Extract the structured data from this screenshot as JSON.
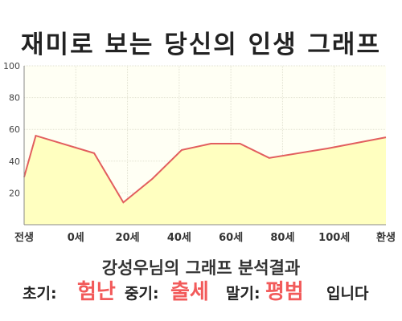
{
  "title": "재미로 보는 당신의 인생 그래프",
  "chart_data": {
    "type": "area",
    "x_tick_labels": [
      "전생",
      "0세",
      "20세",
      "40세",
      "60세",
      "80세",
      "100세",
      "환생"
    ],
    "y_ticks": [
      20,
      40,
      60,
      80,
      100
    ],
    "ylim": [
      0,
      100
    ],
    "grid": true,
    "x": [
      -1.2,
      0,
      6,
      9,
      12,
      15,
      18,
      21,
      24,
      30,
      36
    ],
    "values": [
      30,
      56,
      45,
      14,
      29,
      47,
      51,
      51,
      42,
      48,
      55
    ],
    "colors": {
      "line": "#e25e5e",
      "fill": "#ffffc0",
      "background": "#fffff4",
      "grid": "#e2e2d2"
    }
  },
  "caption": "강성우님의 그래프 분석결과",
  "summary": {
    "early_label": "초기:",
    "early_value": "험난",
    "mid_label": "중기:",
    "mid_value": "출세",
    "late_label": "말기:",
    "late_value": "평범",
    "ending": "입니다"
  }
}
